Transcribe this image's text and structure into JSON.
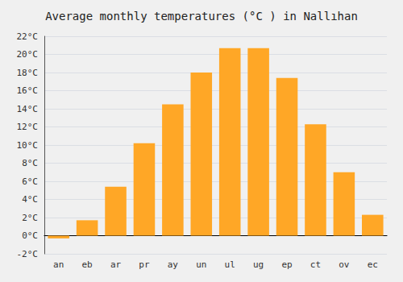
{
  "chart_data": {
    "type": "bar",
    "title": "Average monthly temperatures (°C ) in Nallıhan",
    "categories": [
      "an",
      "eb",
      "ar",
      "pr",
      "ay",
      "un",
      "ul",
      "ug",
      "ep",
      "ct",
      "ov",
      "ec"
    ],
    "values": [
      -0.3,
      1.7,
      5.4,
      10.2,
      14.5,
      18.0,
      20.7,
      20.7,
      17.4,
      12.3,
      7.0,
      2.3
    ],
    "color": "#FFA726",
    "ylim": [
      -2,
      22
    ],
    "yticks": [
      {
        "value": -2,
        "label": "-2°C"
      },
      {
        "value": 0,
        "label": "0°C"
      },
      {
        "value": 2,
        "label": "2°C"
      },
      {
        "value": 4,
        "label": "4°C"
      },
      {
        "value": 6,
        "label": "6°C"
      },
      {
        "value": 8,
        "label": "8°C"
      },
      {
        "value": 10,
        "label": "10°C"
      },
      {
        "value": 12,
        "label": "12°C"
      },
      {
        "value": 14,
        "label": "14°C"
      },
      {
        "value": 16,
        "label": "16°C"
      },
      {
        "value": 18,
        "label": "18°C"
      },
      {
        "value": 20,
        "label": "20°C"
      },
      {
        "value": 22,
        "label": "22°C"
      }
    ],
    "grid": true
  }
}
